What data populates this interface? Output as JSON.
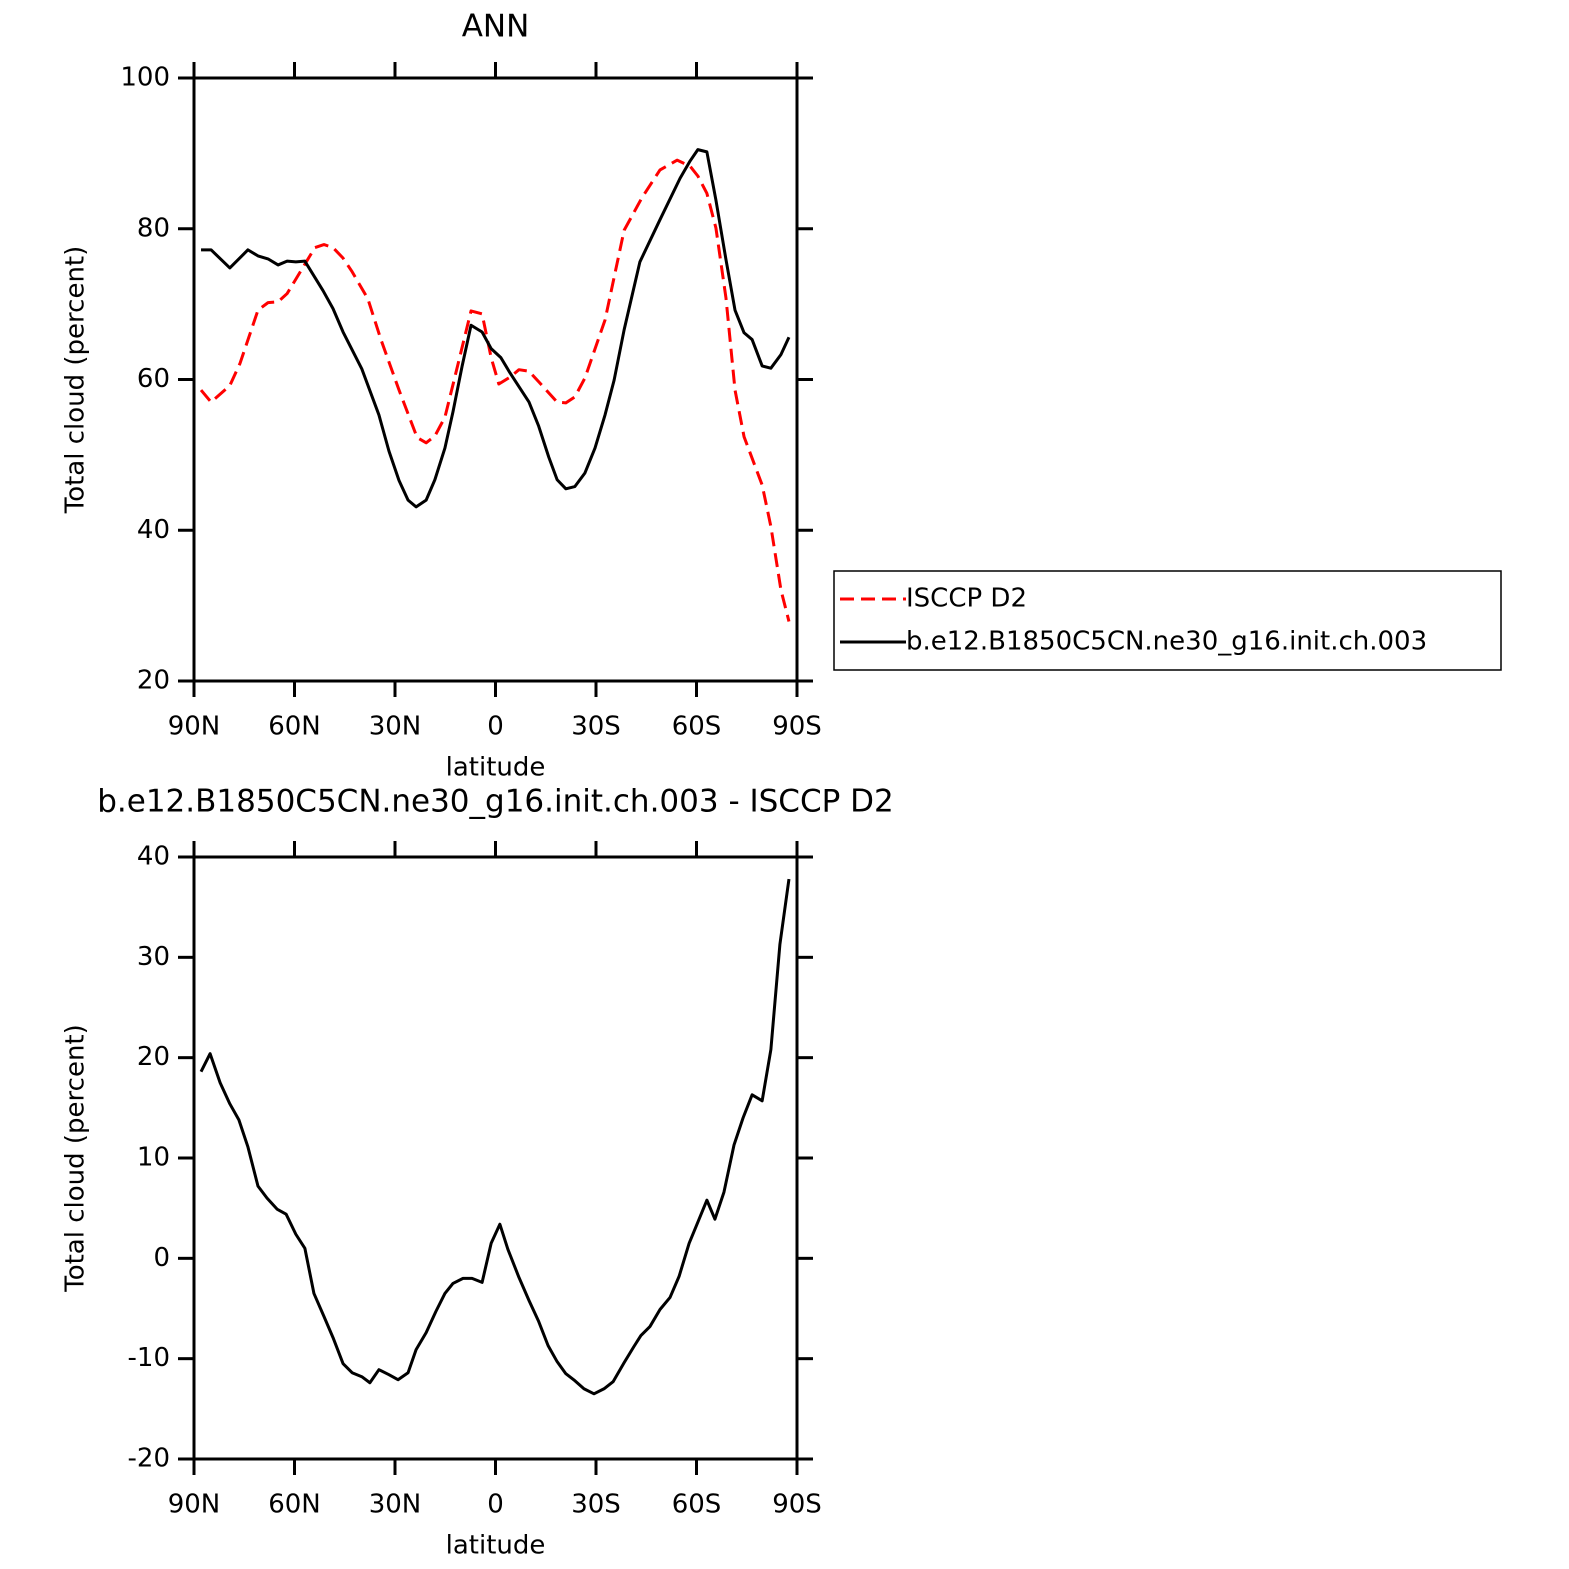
{
  "chart_data": [
    {
      "type": "line",
      "title": "ANN",
      "xlabel": "latitude",
      "ylabel": "Total cloud (percent)",
      "xlim": [
        90,
        -90
      ],
      "ylim": [
        20,
        100
      ],
      "xticks": [
        {
          "value": 90,
          "label": "90N"
        },
        {
          "value": 60,
          "label": "60N"
        },
        {
          "value": 30,
          "label": "30N"
        },
        0,
        {
          "value": -30,
          "label": "30S"
        },
        {
          "value": -60,
          "label": "60S"
        },
        {
          "value": -90,
          "label": "90S"
        }
      ],
      "yticks": [
        20,
        40,
        60,
        80,
        100
      ],
      "legend": "right",
      "series": [
        {
          "name": "ISCCP D2",
          "color": "#ff0000",
          "line_style": "dashed",
          "x": [
            87.9,
            84.9,
            79.3,
            76.3,
            70.9,
            67.9,
            64.9,
            62.2,
            56.9,
            53.9,
            51.2,
            48.5,
            45.5,
            42.8,
            38.1,
            34.2,
            28.8,
            23.4,
            20.7,
            18.1,
            15.1,
            12.7,
            7.3,
            4.0,
            1.3,
            -1.0,
            -4.3,
            -7.0,
            -10.0,
            -12.9,
            -18.4,
            -21.0,
            -23.7,
            -26.7,
            -32.7,
            -38.4,
            -43.7,
            -49.1,
            -54.2,
            -58.1,
            -60.4,
            -63.1,
            -65.8,
            -68.8,
            -71.5,
            -74.2,
            -79.6,
            -82.2,
            -85.2,
            -87.6
          ],
          "values": [
            58.6,
            57.0,
            59.2,
            62.1,
            69.2,
            70.2,
            70.3,
            71.4,
            75.3,
            77.5,
            77.9,
            77.5,
            76.1,
            74.3,
            70.7,
            65.3,
            58.6,
            52.3,
            51.6,
            52.5,
            55.0,
            59.3,
            69.1,
            68.7,
            62.9,
            59.4,
            60.3,
            61.3,
            61.1,
            59.7,
            57.0,
            56.9,
            57.7,
            60.2,
            67.9,
            79.8,
            84.1,
            87.8,
            89.1,
            88.3,
            87.0,
            84.7,
            80.1,
            70.8,
            58.6,
            52.4,
            46.0,
            40.5,
            32.1,
            27.9
          ]
        },
        {
          "name": "b.e12.B1850C5CN.ne30_g16.init.ch.003",
          "color": "#000000",
          "line_style": "solid",
          "x": [
            87.9,
            84.9,
            79.3,
            73.9,
            70.9,
            67.9,
            64.9,
            62.2,
            59.6,
            56.9,
            51.5,
            48.5,
            45.5,
            39.9,
            34.8,
            31.8,
            28.8,
            26.1,
            23.7,
            20.7,
            18.1,
            15.1,
            12.7,
            10.0,
            7.3,
            4.0,
            1.3,
            -1.6,
            -4.3,
            -10.0,
            -12.9,
            -15.9,
            -18.4,
            -21.0,
            -23.7,
            -26.7,
            -29.7,
            -32.7,
            -35.4,
            -38.4,
            -43.1,
            -49.1,
            -55.1,
            -58.1,
            -60.4,
            -63.1,
            -65.8,
            -68.8,
            -71.5,
            -74.2,
            -76.6,
            -79.6,
            -82.2,
            -85.2,
            -87.6
          ],
          "values": [
            77.2,
            77.2,
            74.8,
            77.2,
            76.4,
            76.0,
            75.2,
            75.7,
            75.6,
            75.7,
            71.8,
            69.4,
            66.3,
            61.4,
            55.3,
            50.5,
            46.6,
            44.0,
            43.1,
            44.0,
            46.7,
            50.9,
            55.7,
            61.7,
            67.2,
            66.3,
            64.1,
            62.9,
            60.9,
            57.0,
            53.8,
            49.7,
            46.7,
            45.5,
            45.8,
            47.6,
            50.9,
            55.3,
            59.9,
            66.6,
            75.6,
            81.2,
            86.7,
            89.0,
            90.5,
            90.2,
            83.8,
            75.9,
            69.2,
            66.2,
            65.3,
            61.8,
            61.5,
            63.3,
            65.6
          ]
        }
      ]
    },
    {
      "type": "line",
      "title": "b.e12.B1850C5CN.ne30_g16.init.ch.003 - ISCCP D2",
      "xlabel": "latitude",
      "ylabel": "Total cloud (percent)",
      "xlim": [
        90,
        -90
      ],
      "ylim": [
        -20,
        40
      ],
      "xticks": [
        {
          "value": 90,
          "label": "90N"
        },
        {
          "value": 60,
          "label": "60N"
        },
        {
          "value": 30,
          "label": "30N"
        },
        0,
        {
          "value": -30,
          "label": "30S"
        },
        {
          "value": -60,
          "label": "60S"
        },
        {
          "value": -90,
          "label": "90S"
        }
      ],
      "yticks": [
        -20,
        -10,
        0,
        10,
        20,
        30,
        40
      ],
      "series": [
        {
          "color": "#000000",
          "line_style": "solid",
          "x": [
            87.9,
            85.2,
            82.2,
            79.3,
            76.6,
            73.9,
            70.9,
            68.2,
            65.2,
            62.5,
            59.6,
            56.9,
            54.2,
            51.2,
            48.5,
            45.5,
            42.8,
            39.9,
            37.5,
            34.8,
            31.8,
            29.1,
            26.1,
            23.7,
            20.7,
            17.8,
            15.1,
            12.7,
            9.7,
            7.0,
            4.0,
            1.3,
            -1.3,
            -3.7,
            -7.0,
            -10.0,
            -12.9,
            -15.7,
            -18.4,
            -21.0,
            -23.7,
            -26.4,
            -29.4,
            -32.4,
            -35.1,
            -38.4,
            -41.3,
            -43.4,
            -46.1,
            -49.1,
            -52.1,
            -54.8,
            -57.8,
            -60.4,
            -63.1,
            -65.5,
            -68.2,
            -71.2,
            -73.9,
            -76.6,
            -79.6,
            -82.2,
            -84.9,
            -87.6
          ],
          "values": [
            18.6,
            20.4,
            17.5,
            15.4,
            13.8,
            11.1,
            7.2,
            6.0,
            4.9,
            4.4,
            2.4,
            1.0,
            -3.5,
            -5.8,
            -7.9,
            -10.5,
            -11.4,
            -11.8,
            -12.4,
            -11.1,
            -11.6,
            -12.1,
            -11.4,
            -9.1,
            -7.4,
            -5.3,
            -3.5,
            -2.5,
            -2.0,
            -2.0,
            -2.4,
            1.5,
            3.4,
            0.9,
            -1.9,
            -4.2,
            -6.3,
            -8.7,
            -10.3,
            -11.5,
            -12.2,
            -13.0,
            -13.5,
            -13.0,
            -12.3,
            -10.4,
            -8.8,
            -7.7,
            -6.8,
            -5.1,
            -3.9,
            -1.8,
            1.5,
            3.6,
            5.8,
            3.9,
            6.6,
            11.3,
            14.0,
            16.3,
            15.7,
            20.8,
            31.3,
            37.8
          ]
        }
      ]
    }
  ]
}
